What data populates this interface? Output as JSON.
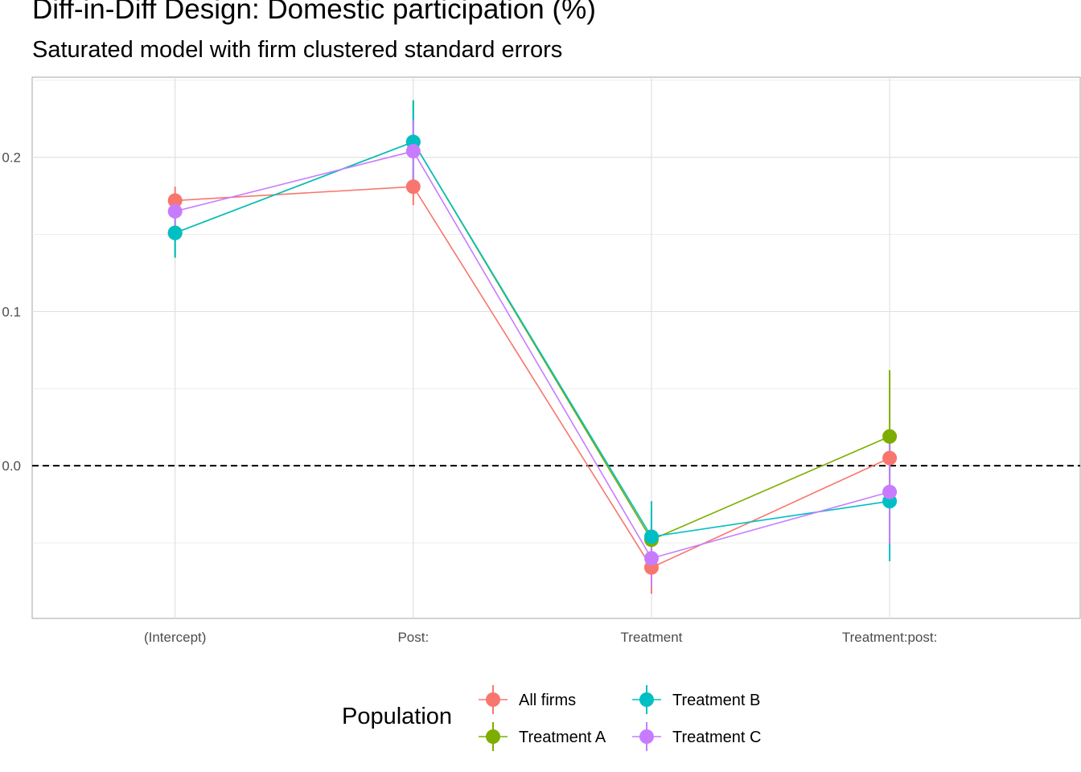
{
  "chart_data": {
    "type": "scatter",
    "title": "Diff-in-Diff Design: Domestic participation (%)",
    "subtitle": "Saturated model with firm clustered standard errors",
    "categories": [
      "(Intercept)",
      "Post:",
      "Treatment",
      "Treatment:post:"
    ],
    "yticks": [
      0.0,
      0.1,
      0.2
    ],
    "ytick_labels": [
      "0.0",
      "0.1",
      "0.2"
    ],
    "ylim": [
      -0.099,
      0.252
    ],
    "grid": true,
    "reference_line": {
      "y": 0.0,
      "style": "dashed"
    },
    "legend": {
      "title": "Population",
      "placement": "bottom"
    },
    "series": [
      {
        "name": "All firms",
        "color": "#F8766D",
        "values": [
          0.172,
          0.181,
          -0.066,
          0.005
        ],
        "lower": [
          0.164,
          0.169,
          -0.083,
          -0.005
        ],
        "upper": [
          0.181,
          0.194,
          -0.049,
          0.015
        ]
      },
      {
        "name": "Treatment A",
        "color": "#7CAE00",
        "values": [
          0.151,
          0.21,
          -0.048,
          0.019
        ],
        "lower": [
          0.135,
          0.183,
          -0.068,
          -0.024
        ],
        "upper": [
          0.167,
          0.237,
          -0.028,
          0.062
        ]
      },
      {
        "name": "Treatment B",
        "color": "#00BFC4",
        "values": [
          0.151,
          0.21,
          -0.046,
          -0.023
        ],
        "lower": [
          0.135,
          0.183,
          -0.068,
          -0.062
        ],
        "upper": [
          0.167,
          0.237,
          -0.023,
          0.016
        ]
      },
      {
        "name": "Treatment C",
        "color": "#C77CFF",
        "values": [
          0.165,
          0.204,
          -0.06,
          -0.017
        ],
        "lower": [
          0.155,
          0.184,
          -0.079,
          -0.051
        ],
        "upper": [
          0.175,
          0.224,
          -0.041,
          0.017
        ]
      }
    ]
  }
}
